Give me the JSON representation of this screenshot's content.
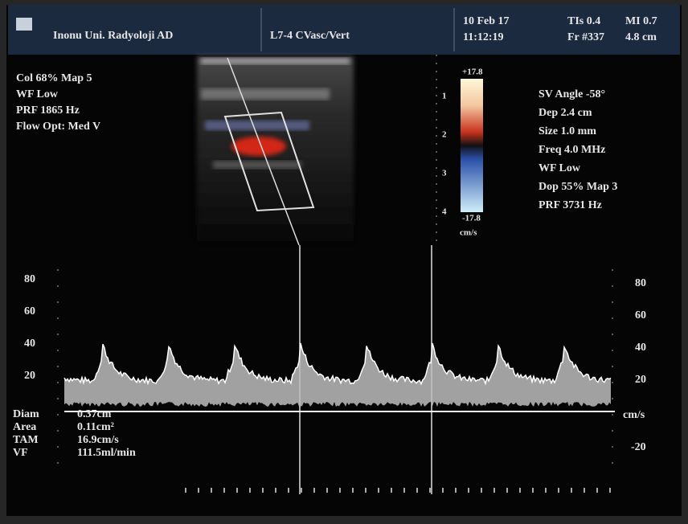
{
  "header": {
    "institution": "Inonu Uni. Radyoloji AD",
    "probe": "L7-4 CVasc/Vert",
    "date": "10 Feb 17",
    "time": "11:12:19",
    "tis": "TIs 0.4",
    "mi": "MI 0.7",
    "frame": "Fr #337",
    "depth": "4.8 cm"
  },
  "color_params": [
    "Col 68%  Map 5",
    "WF Low",
    "PRF 1865  Hz",
    "Flow Opt: Med V"
  ],
  "doppler_params": [
    "SV Angle -58°",
    "Dep 2.4  cm",
    "Size 1.0  mm",
    "Freq 4.0  MHz",
    "WF Low",
    "Dop 55%  Map 3",
    "PRF 3731  Hz"
  ],
  "color_scale": {
    "max": "+17.8",
    "min": "-17.8",
    "unit": "cm/s"
  },
  "depth_scale": [
    "1",
    "2",
    "3",
    "4"
  ],
  "spectrum": {
    "left_scale": [
      "80",
      "60",
      "40",
      "20"
    ],
    "right_scale": [
      "80",
      "60",
      "40",
      "20",
      "cm/s",
      "-20"
    ]
  },
  "measurements": [
    {
      "label": "Diam",
      "value": "0.37cm"
    },
    {
      "label": "Area",
      "value": "0.11cm²"
    },
    {
      "label": "TAM",
      "value": "16.9cm/s"
    },
    {
      "label": "VF",
      "value": "111.5ml/min"
    }
  ]
}
